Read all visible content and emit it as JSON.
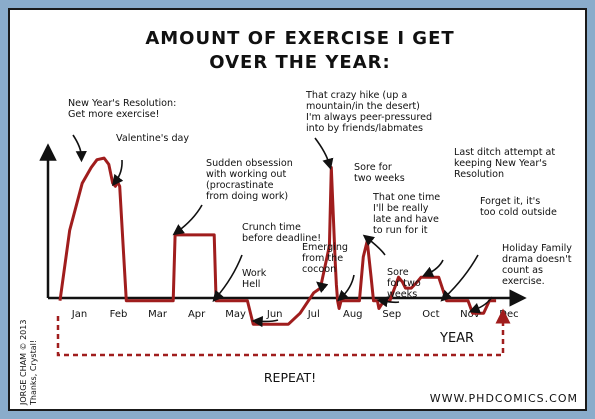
{
  "title_line1": "AMOUNT OF EXERCISE I GET",
  "title_line2": "OVER THE YEAR:",
  "credit_line1": "JORGE CHAM © 2013",
  "credit_line2": "Thanks, Crystal!",
  "site_url": "WWW.PHDCOMICS.COM",
  "repeat_label": "REPEAT!",
  "colors": {
    "line": "#a01d1d",
    "ink": "#111111",
    "background": "#8aaccb"
  },
  "chart_data": {
    "type": "line",
    "title": "AMOUNT OF EXERCISE I GET OVER THE YEAR:",
    "xlabel": "YEAR",
    "ylabel": "",
    "categories": [
      "Jan",
      "Feb",
      "Mar",
      "Apr",
      "May",
      "Jun",
      "Jul",
      "Aug",
      "Sep",
      "Oct",
      "Nov",
      "Dec"
    ],
    "x": [
      0.05,
      0.3,
      0.62,
      0.85,
      1.0,
      1.18,
      1.3,
      1.4,
      1.47,
      1.52,
      1.58,
      1.75,
      2.3,
      2.95,
      3.0,
      3.05,
      3.95,
      4.0,
      4.05,
      4.85,
      5.0,
      5.15,
      5.9,
      6.2,
      6.55,
      6.72,
      6.95,
      7.0,
      7.1,
      7.13,
      7.16,
      7.2,
      7.25,
      7.32,
      7.45,
      7.72,
      7.82,
      7.92,
      8.02,
      8.08,
      8.18,
      8.22,
      8.35,
      8.5,
      8.65,
      8.72,
      8.82,
      8.9,
      9.05,
      9.2,
      9.3,
      9.75,
      9.95,
      10.35,
      10.5,
      10.62,
      10.75,
      10.9,
      11.05,
      11.12,
      11.22
    ],
    "y": [
      0.0,
      0.45,
      0.75,
      0.85,
      0.9,
      0.91,
      0.87,
      0.75,
      0.73,
      0.76,
      0.73,
      0.0,
      0.0,
      0.0,
      0.42,
      0.42,
      0.42,
      0.42,
      0.0,
      0.0,
      -0.15,
      -0.15,
      -0.15,
      -0.08,
      0.05,
      0.08,
      0.35,
      0.85,
      0.25,
      0.1,
      0.0,
      -0.05,
      0.0,
      0.0,
      0.0,
      0.0,
      0.28,
      0.38,
      0.15,
      0.0,
      0.0,
      -0.05,
      0.0,
      0.0,
      0.1,
      0.15,
      0.12,
      0.08,
      0.08,
      0.12,
      0.15,
      0.15,
      0.0,
      0.0,
      0.0,
      -0.08,
      -0.08,
      -0.08,
      0.0,
      0.0,
      0.0
    ],
    "xlim": [
      0,
      11.5
    ],
    "ylim": [
      -0.2,
      1.0
    ],
    "annotations": [
      {
        "text": [
          "New Year's Resolution:",
          "Get more exercise!"
        ],
        "x": 0.6,
        "y": 0.9
      },
      {
        "text": [
          "Valentine's day"
        ],
        "x": 1.47,
        "y": 0.74
      },
      {
        "text": [
          "Sudden obsession",
          "with working out",
          "(procrastinate",
          "from doing work)"
        ],
        "x": 3.05,
        "y": 0.42
      },
      {
        "text": [
          "Crunch time",
          "before deadline!"
        ],
        "x": 4.05,
        "y": 0.0
      },
      {
        "text": [
          "Work",
          "Hell"
        ],
        "x": 5.1,
        "y": -0.15
      },
      {
        "text": [
          "Emerging",
          "from the",
          "cocoon"
        ],
        "x": 6.72,
        "y": 0.08
      },
      {
        "text": [
          "That crazy hike (up a",
          "mountain/in the desert)",
          "I'm always peer-pressured",
          "into by friends/labmates"
        ],
        "x": 6.95,
        "y": 0.85
      },
      {
        "text": [
          "Sore for",
          "two weeks"
        ],
        "x": 7.25,
        "y": 0.0
      },
      {
        "text": [
          "That one time",
          "I'll be really",
          "late and have",
          "to run for it"
        ],
        "x": 7.92,
        "y": 0.38
      },
      {
        "text": [
          "Sore",
          "for two",
          "weeks"
        ],
        "x": 8.3,
        "y": -0.02
      },
      {
        "text": [
          "Last ditch attempt at",
          "keeping New Year's",
          "Resolution"
        ],
        "x": 9.45,
        "y": 0.15
      },
      {
        "text": [
          "Forget it, it's",
          "too cold outside"
        ],
        "x": 9.9,
        "y": 0.0
      },
      {
        "text": [
          "Holiday Family",
          "drama doesn't",
          "count as",
          "exercise."
        ],
        "x": 10.65,
        "y": -0.08
      }
    ]
  }
}
